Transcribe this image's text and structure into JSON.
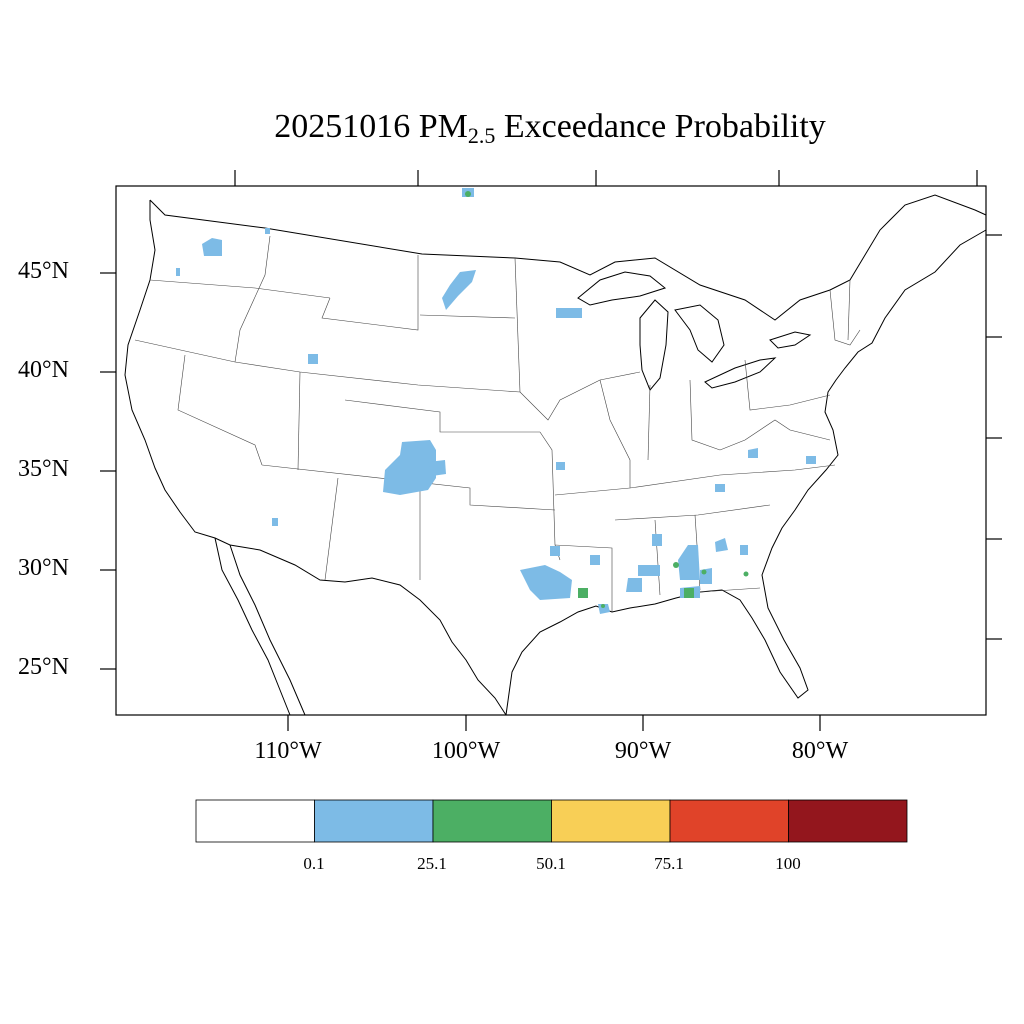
{
  "title": {
    "prefix": "20251016 PM",
    "subscript": "2.5",
    "suffix": " Exceedance Probability"
  },
  "latitude_labels": [
    "45°N",
    "40°N",
    "35°N",
    "30°N",
    "25°N"
  ],
  "longitude_labels": [
    "110°W",
    "100°W",
    "90°W",
    "80°W"
  ],
  "legend": {
    "colors": [
      "#ffffff",
      "#7dbbe6",
      "#4caf64",
      "#f8cf56",
      "#e04329",
      "#93161d"
    ],
    "labels": [
      "0.1",
      "25.1",
      "50.1",
      "75.1",
      "100"
    ]
  }
}
